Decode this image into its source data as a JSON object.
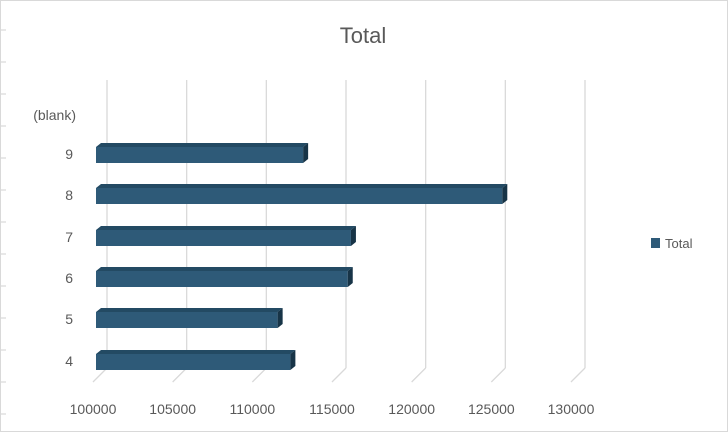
{
  "chart_data": {
    "type": "bar",
    "orientation": "horizontal",
    "title": "Total",
    "xlabel": "",
    "ylabel": "",
    "categories": [
      "(blank)",
      "9",
      "8",
      "7",
      "6",
      "5",
      "4"
    ],
    "series": [
      {
        "name": "Total",
        "values": [
          null,
          113000,
          125500,
          116000,
          115800,
          111400,
          112200
        ]
      }
    ],
    "xlim": [
      100000,
      130000
    ],
    "xticks": [
      "100000",
      "105000",
      "110000",
      "115000",
      "120000",
      "125000",
      "130000"
    ],
    "grid": true,
    "legend_position": "right",
    "colors": {
      "bar_front": "#2e5a78",
      "bar_top": "#234a63",
      "bar_side": "#173447",
      "grid": "#d9d9d9",
      "text": "#595959"
    }
  }
}
